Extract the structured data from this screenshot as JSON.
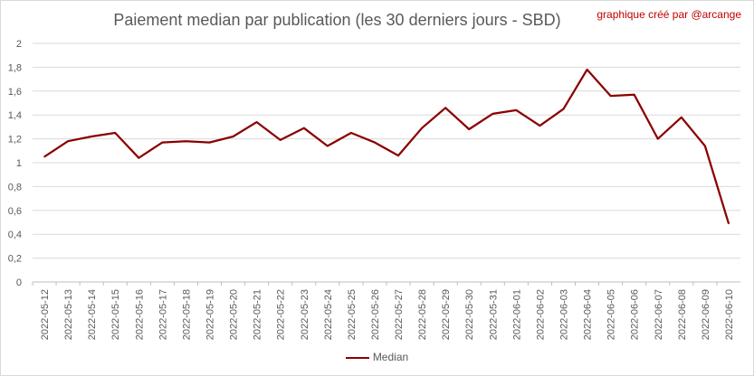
{
  "chart_data": {
    "type": "line",
    "title": "Paiement median par publication (les 30 derniers jours - SBD)",
    "annotation": "graphique créé par @arcange",
    "xlabel": "",
    "ylabel": "",
    "ylim": [
      0,
      2
    ],
    "ytick_step": 0.2,
    "ytick_labels": [
      "0",
      "0,2",
      "0,4",
      "0,6",
      "0,8",
      "1",
      "1,2",
      "1,4",
      "1,6",
      "1,8",
      "2"
    ],
    "grid": true,
    "legend_position": "bottom",
    "categories": [
      "2022-05-12",
      "2022-05-13",
      "2022-05-14",
      "2022-05-15",
      "2022-05-16",
      "2022-05-17",
      "2022-05-18",
      "2022-05-19",
      "2022-05-20",
      "2022-05-21",
      "2022-05-22",
      "2022-05-23",
      "2022-05-24",
      "2022-05-25",
      "2022-05-26",
      "2022-05-27",
      "2022-05-28",
      "2022-05-29",
      "2022-05-30",
      "2022-05-31",
      "2022-06-01",
      "2022-06-02",
      "2022-06-03",
      "2022-06-04",
      "2022-06-05",
      "2022-06-06",
      "2022-06-07",
      "2022-06-08",
      "2022-06-09",
      "2022-06-10"
    ],
    "series": [
      {
        "name": "Median",
        "color": "#8b0000",
        "values": [
          1.05,
          1.18,
          1.22,
          1.25,
          1.04,
          1.17,
          1.18,
          1.17,
          1.22,
          1.34,
          1.19,
          1.29,
          1.14,
          1.25,
          1.17,
          1.06,
          1.29,
          1.46,
          1.28,
          1.41,
          1.44,
          1.31,
          1.45,
          1.78,
          1.56,
          1.57,
          1.2,
          1.38,
          1.14,
          0.49
        ]
      }
    ]
  }
}
